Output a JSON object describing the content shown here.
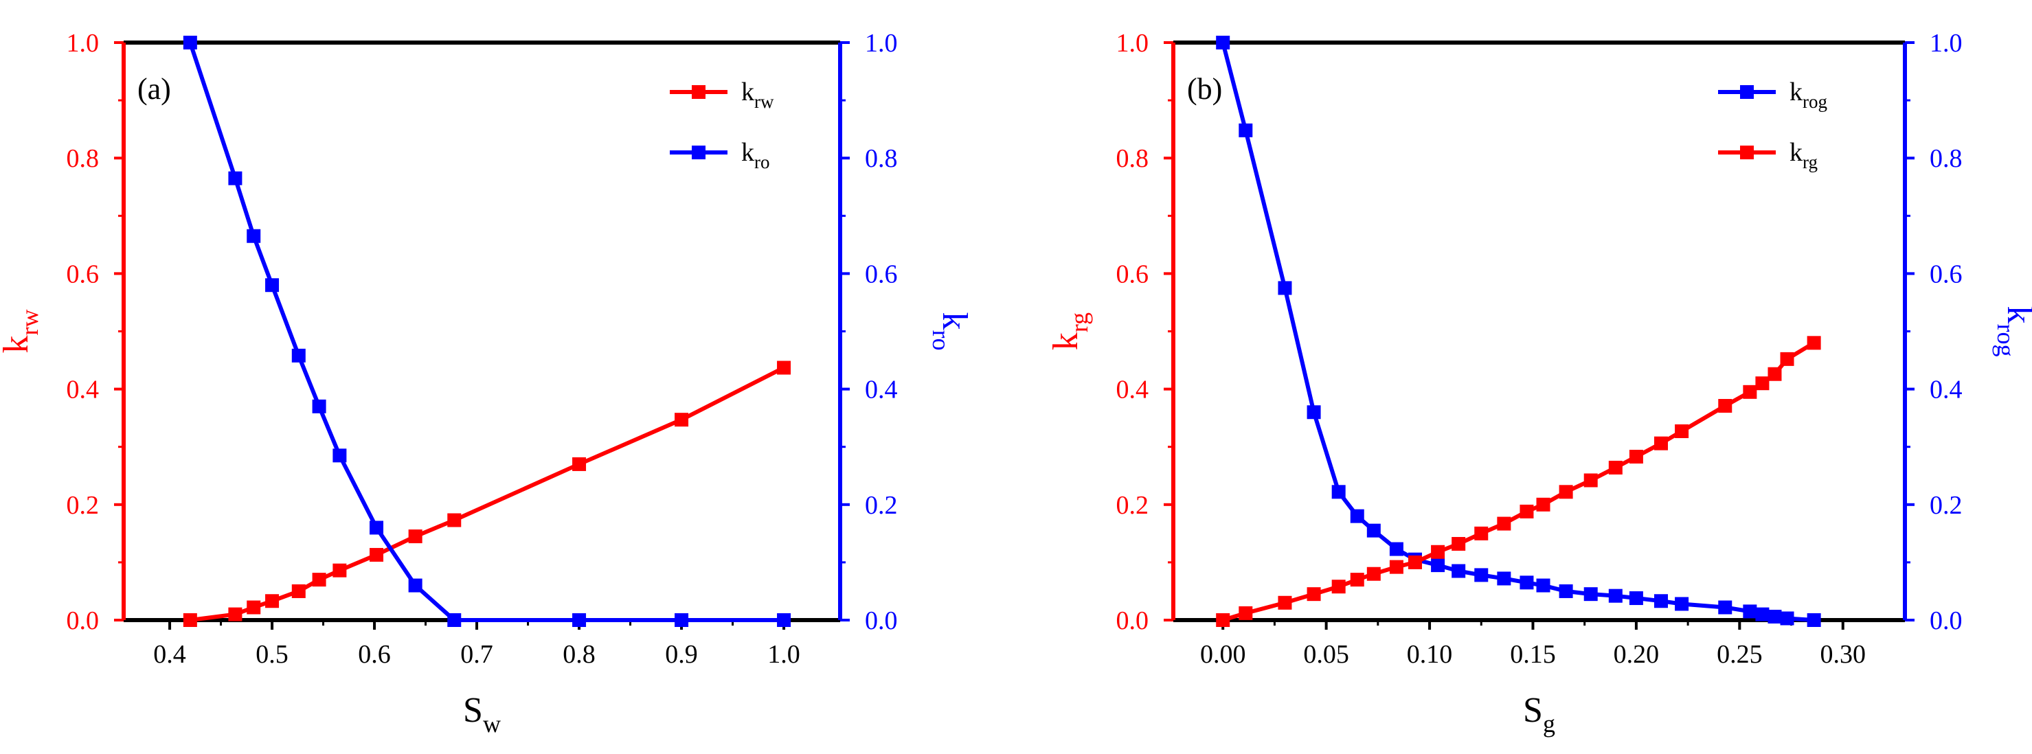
{
  "chart_data": [
    {
      "type": "line",
      "panel_label": "(a)",
      "x_axis": {
        "label": "S",
        "label_sub": "w",
        "ticks": [
          "0.4",
          "0.5",
          "0.6",
          "0.7",
          "0.8",
          "0.9",
          "1.0"
        ],
        "range": [
          0.355,
          1.055
        ]
      },
      "y_left": {
        "label": "k",
        "label_sub": "rw",
        "ticks": [
          "0.0",
          "0.2",
          "0.4",
          "0.6",
          "0.8",
          "1.0"
        ],
        "range": [
          0,
          1
        ],
        "color": "#ff0000"
      },
      "y_right": {
        "label": "k",
        "label_sub": "ro",
        "ticks": [
          "0.0",
          "0.2",
          "0.4",
          "0.6",
          "0.8",
          "1.0"
        ],
        "range": [
          0,
          1
        ],
        "color": "#0000ff"
      },
      "legend": [
        {
          "name": "k",
          "sub": "rw",
          "color": "#ff0000"
        },
        {
          "name": "k",
          "sub": "ro",
          "color": "#0000ff"
        }
      ],
      "series": [
        {
          "name": "krw",
          "axis": "left",
          "color": "#ff0000",
          "x": [
            0.42,
            0.464,
            0.482,
            0.5,
            0.526,
            0.546,
            0.566,
            0.602,
            0.64,
            0.678,
            0.8,
            0.9,
            1.0
          ],
          "y": [
            0.0,
            0.01,
            0.022,
            0.033,
            0.05,
            0.07,
            0.086,
            0.113,
            0.145,
            0.173,
            0.27,
            0.347,
            0.437
          ]
        },
        {
          "name": "kro",
          "axis": "right",
          "color": "#0000ff",
          "x": [
            0.42,
            0.464,
            0.482,
            0.5,
            0.526,
            0.546,
            0.566,
            0.602,
            0.64,
            0.678,
            0.8,
            0.9,
            1.0
          ],
          "y": [
            1.0,
            0.765,
            0.665,
            0.58,
            0.458,
            0.37,
            0.285,
            0.16,
            0.06,
            0.0,
            0.0,
            0.0,
            0.0
          ]
        }
      ]
    },
    {
      "type": "line",
      "panel_label": "(b)",
      "x_axis": {
        "label": "S",
        "label_sub": "g",
        "ticks": [
          "0.00",
          "0.05",
          "0.10",
          "0.15",
          "0.20",
          "0.25",
          "0.30"
        ],
        "range": [
          -0.024,
          0.33
        ]
      },
      "y_left": {
        "label": "k",
        "label_sub": "rg",
        "ticks": [
          "0.0",
          "0.2",
          "0.4",
          "0.6",
          "0.8",
          "1.0"
        ],
        "range": [
          0,
          1
        ],
        "color": "#ff0000"
      },
      "y_right": {
        "label": "k",
        "label_sub": "rog",
        "ticks": [
          "0.0",
          "0.2",
          "0.4",
          "0.6",
          "0.8",
          "1.0"
        ],
        "range": [
          0,
          1
        ],
        "color": "#0000ff"
      },
      "legend": [
        {
          "name": "k",
          "sub": "rog",
          "color": "#0000ff"
        },
        {
          "name": "k",
          "sub": "rg",
          "color": "#ff0000"
        }
      ],
      "series": [
        {
          "name": "krog",
          "axis": "right",
          "color": "#0000ff",
          "x": [
            0.0,
            0.011,
            0.03,
            0.044,
            0.056,
            0.065,
            0.073,
            0.084,
            0.093,
            0.104,
            0.114,
            0.125,
            0.136,
            0.147,
            0.155,
            0.166,
            0.178,
            0.19,
            0.2,
            0.212,
            0.222,
            0.243,
            0.255,
            0.261,
            0.267,
            0.273,
            0.286
          ],
          "y": [
            1.0,
            0.848,
            0.575,
            0.36,
            0.222,
            0.18,
            0.155,
            0.123,
            0.105,
            0.095,
            0.085,
            0.078,
            0.072,
            0.065,
            0.06,
            0.05,
            0.045,
            0.042,
            0.038,
            0.033,
            0.028,
            0.022,
            0.015,
            0.01,
            0.006,
            0.003,
            0.0
          ]
        },
        {
          "name": "krg",
          "axis": "left",
          "color": "#ff0000",
          "x": [
            0.0,
            0.011,
            0.03,
            0.044,
            0.056,
            0.065,
            0.073,
            0.084,
            0.093,
            0.104,
            0.114,
            0.125,
            0.136,
            0.147,
            0.155,
            0.166,
            0.178,
            0.19,
            0.2,
            0.212,
            0.222,
            0.243,
            0.255,
            0.261,
            0.267,
            0.273,
            0.286
          ],
          "y": [
            0.0,
            0.012,
            0.03,
            0.045,
            0.058,
            0.07,
            0.08,
            0.092,
            0.1,
            0.118,
            0.132,
            0.15,
            0.167,
            0.188,
            0.2,
            0.222,
            0.242,
            0.264,
            0.283,
            0.306,
            0.327,
            0.371,
            0.395,
            0.41,
            0.426,
            0.452,
            0.48
          ]
        }
      ]
    }
  ]
}
